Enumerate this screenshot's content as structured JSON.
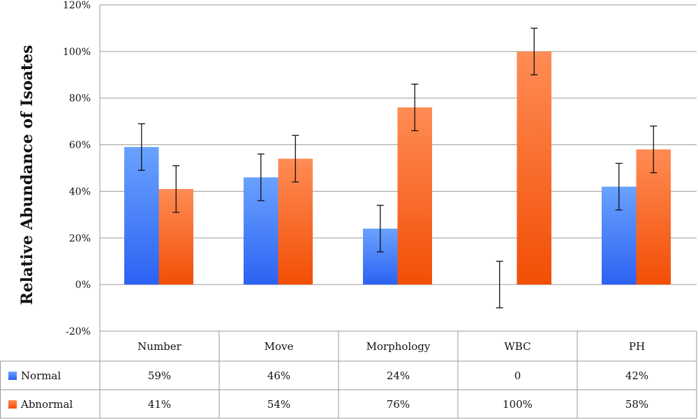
{
  "chart_data": {
    "type": "bar",
    "ylabel": "Relative Abundance of Isoates",
    "ylim": [
      -20,
      120
    ],
    "yticks": [
      "-20%",
      "0%",
      "20%",
      "40%",
      "60%",
      "80%",
      "100%",
      "120%"
    ],
    "ytick_values": [
      -20,
      0,
      20,
      40,
      60,
      80,
      100,
      120
    ],
    "grid": true,
    "categories": [
      "Number",
      "Move",
      "Morphology",
      "WBC",
      "PH"
    ],
    "error_bar": 10,
    "series": [
      {
        "name": "Normal",
        "color": "#3f7dfb",
        "color_light": "#6aa2ff",
        "values": [
          59,
          46,
          24,
          0,
          42
        ],
        "labels": [
          "59%",
          "46%",
          "24%",
          "0",
          "42%"
        ]
      },
      {
        "name": "Abnormal",
        "color": "#f55a14",
        "color_light": "#ff8c55",
        "values": [
          41,
          54,
          76,
          100,
          58
        ],
        "labels": [
          "41%",
          "54%",
          "76%",
          "100%",
          "58%"
        ]
      }
    ],
    "legend_placement": "data-table"
  }
}
